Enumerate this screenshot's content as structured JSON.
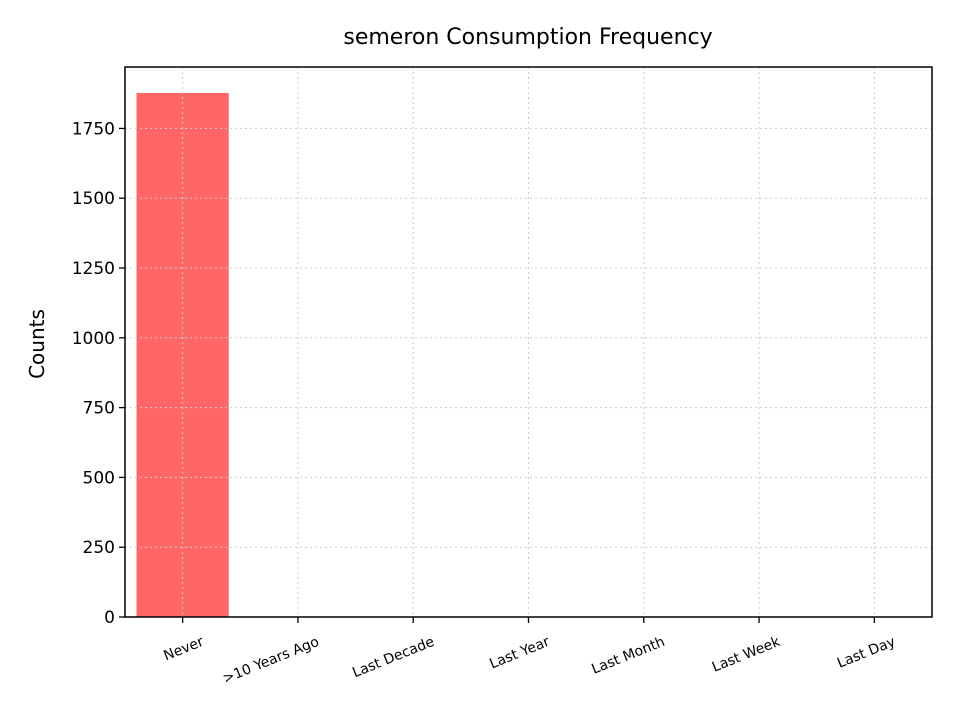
{
  "chart_data": {
    "type": "bar",
    "title": "semeron Consumption Frequency",
    "xlabel": "",
    "ylabel": "Counts",
    "categories": [
      "Never",
      ">10 Years Ago",
      "Last Decade",
      "Last Year",
      "Last Month",
      "Last Week",
      "Last Day"
    ],
    "values": [
      1877,
      0,
      0,
      0,
      0,
      0,
      0
    ],
    "ylim": [
      0,
      1970
    ],
    "yticks": [
      0,
      250,
      500,
      750,
      1000,
      1250,
      1500,
      1750
    ],
    "grid": true,
    "legend": "none",
    "bar_color": "#ff6666",
    "grid_color": "#cccccc"
  }
}
